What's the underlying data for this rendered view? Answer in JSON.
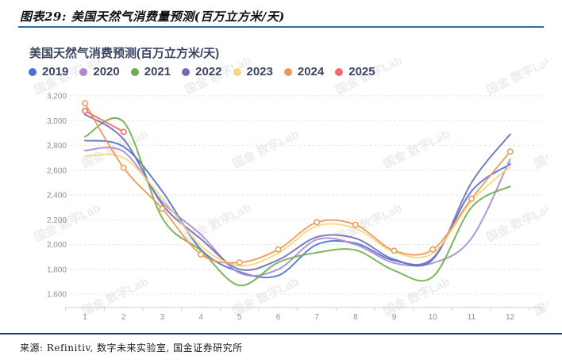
{
  "caption": {
    "text": "图表29: 美国天然气消费量预测(百万立方米/天)"
  },
  "chart": {
    "title": "美国天然气消费预测(百万立方米/天)"
  },
  "watermark": {
    "text": "国金 数字Lab"
  },
  "source": {
    "text": "来源: Refinitiv, 数字未来实验室, 国金证券研究所"
  },
  "chart_data": {
    "type": "line",
    "title": "美国天然气消费预测(百万立方米/天)",
    "xlabel": "",
    "ylabel": "",
    "x": [
      1,
      2,
      3,
      4,
      5,
      6,
      7,
      8,
      9,
      10,
      11,
      12
    ],
    "ylim": [
      1600,
      3200
    ],
    "yticks": [
      "1,600",
      "1,800",
      "2,000",
      "2,200",
      "2,400",
      "2,600",
      "2,800",
      "3,000",
      "3,200"
    ],
    "grid": "horizontal-dashed",
    "legend_position": "top-left",
    "series": [
      {
        "name": "2019",
        "color": "#4c70d8",
        "markers": false,
        "values": [
          2840,
          2790,
          2430,
          1960,
          1780,
          1750,
          2000,
          2010,
          1870,
          1890,
          2430,
          2650
        ]
      },
      {
        "name": "2020",
        "color": "#a88bd0",
        "markers": false,
        "values": [
          2760,
          2750,
          2345,
          2080,
          1770,
          1800,
          2040,
          2000,
          1850,
          1850,
          2050,
          2690
        ]
      },
      {
        "name": "2021",
        "color": "#6fae47",
        "markers": false,
        "values": [
          2870,
          2990,
          2215,
          1950,
          1670,
          1855,
          1935,
          1955,
          1790,
          1740,
          2300,
          2470
        ]
      },
      {
        "name": "2022",
        "color": "#6e6db4",
        "markers": false,
        "values": [
          3050,
          2850,
          2325,
          2045,
          1800,
          1875,
          2060,
          2050,
          1880,
          1880,
          2500,
          2890
        ]
      },
      {
        "name": "2023",
        "color": "#f6d77e",
        "markers": false,
        "values": [
          2715,
          2700,
          2375,
          1990,
          1830,
          1930,
          2150,
          2130,
          1940,
          1930,
          2350,
          2630
        ]
      },
      {
        "name": "2024",
        "color": "#ec9a58",
        "markers": true,
        "values": [
          3140,
          2620,
          2290,
          1920,
          1855,
          1960,
          2180,
          2160,
          1950,
          1960,
          2370,
          2750
        ]
      },
      {
        "name": "2025",
        "color": "#f4696b",
        "markers": true,
        "values": [
          3080,
          2910
        ]
      }
    ]
  }
}
